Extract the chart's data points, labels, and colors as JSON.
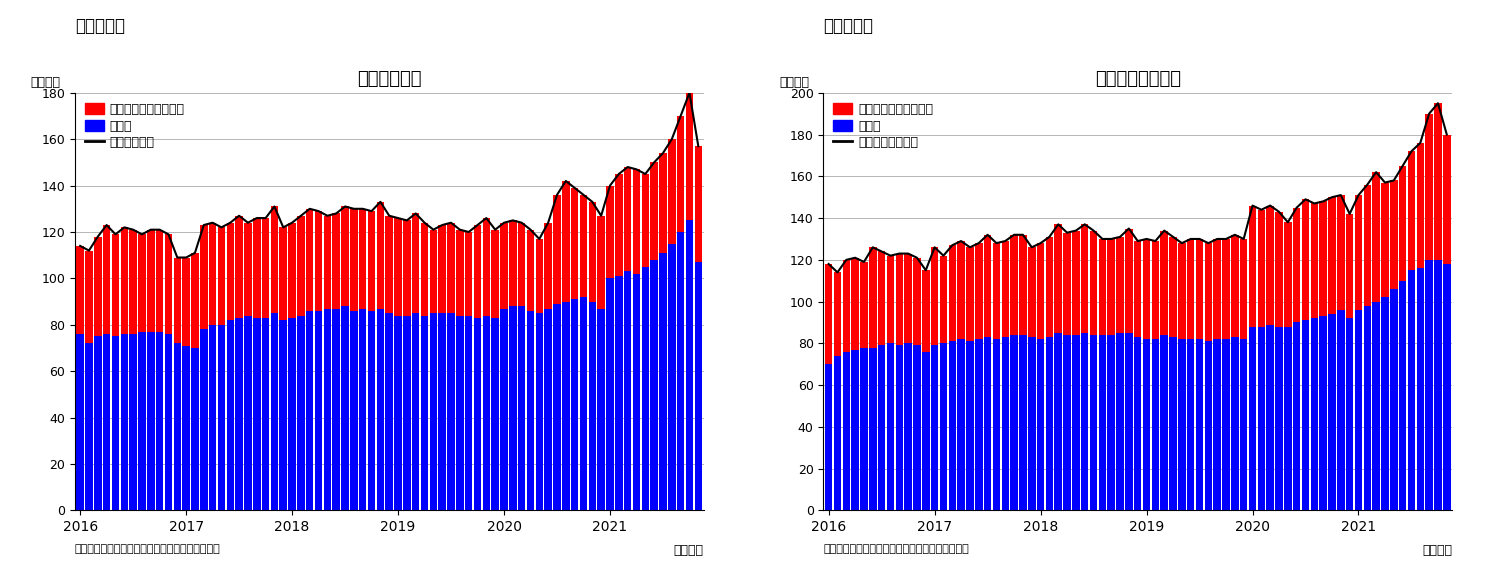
{
  "chart1": {
    "title": "住宅着工件数",
    "super_title": "（図表１）",
    "ylabel": "（万件）",
    "xlabel_note": "（月次）",
    "source": "（資料）センサス局よりニッセイ基礎研究所作成",
    "ylim": [
      0,
      180
    ],
    "yticks": [
      0,
      20,
      40,
      60,
      80,
      100,
      120,
      140,
      160,
      180
    ],
    "legend_labels": [
      "集合住宅（二戸以上）",
      "戸建て",
      "住宅着工件数"
    ],
    "blue_color": "#0000FF",
    "red_color": "#FF0000",
    "line_color": "#000000",
    "kodate": [
      76,
      72,
      75,
      76,
      75,
      76,
      76,
      77,
      77,
      77,
      76,
      72,
      71,
      70,
      78,
      80,
      80,
      82,
      83,
      84,
      83,
      83,
      85,
      82,
      83,
      84,
      86,
      86,
      87,
      87,
      88,
      86,
      87,
      86,
      87,
      85,
      84,
      84,
      85,
      84,
      85,
      85,
      85,
      84,
      84,
      83,
      84,
      83,
      87,
      88,
      88,
      86,
      85,
      87,
      89,
      90,
      91,
      92,
      90,
      87,
      100,
      101,
      103,
      102,
      105,
      108,
      111,
      115,
      120,
      125,
      107
    ],
    "shugo": [
      38,
      40,
      43,
      47,
      44,
      46,
      45,
      42,
      44,
      44,
      43,
      37,
      38,
      41,
      45,
      44,
      42,
      42,
      44,
      40,
      43,
      43,
      46,
      40,
      41,
      43,
      44,
      43,
      40,
      41,
      43,
      44,
      43,
      43,
      46,
      42,
      42,
      41,
      43,
      40,
      36,
      38,
      39,
      37,
      36,
      40,
      42,
      38,
      37,
      37,
      36,
      35,
      32,
      37,
      47,
      52,
      48,
      44,
      43,
      40,
      40,
      44,
      45,
      45,
      40,
      42,
      43,
      45,
      50,
      55,
      50
    ],
    "xtick_years": [
      "2016",
      "2017",
      "2018",
      "2019",
      "2020",
      "2021"
    ],
    "xtick_positions": [
      0,
      12,
      24,
      36,
      48,
      60
    ]
  },
  "chart2": {
    "title": "住宅着工許可件数",
    "super_title": "（図表２）",
    "ylabel": "（万件）",
    "xlabel_note": "（月次）",
    "source": "（資料）センサス局よりニッセイ基礎研究所作成",
    "ylim": [
      0,
      200
    ],
    "yticks": [
      0,
      20,
      40,
      60,
      80,
      100,
      120,
      140,
      160,
      180,
      200
    ],
    "legend_labels": [
      "集合住宅（二戸以上）",
      "戸建て",
      "住宅建築許可件数"
    ],
    "blue_color": "#0000FF",
    "red_color": "#FF0000",
    "line_color": "#000000",
    "kodate": [
      70,
      74,
      76,
      77,
      78,
      78,
      79,
      80,
      79,
      80,
      79,
      76,
      79,
      80,
      81,
      82,
      81,
      82,
      83,
      82,
      83,
      84,
      84,
      83,
      82,
      83,
      85,
      84,
      84,
      85,
      84,
      84,
      84,
      85,
      85,
      83,
      82,
      82,
      84,
      83,
      82,
      82,
      82,
      81,
      82,
      82,
      83,
      82,
      88,
      88,
      89,
      88,
      88,
      90,
      91,
      92,
      93,
      94,
      96,
      92,
      96,
      98,
      100,
      102,
      106,
      110,
      115,
      116,
      120,
      120,
      118
    ],
    "shugo": [
      48,
      40,
      44,
      44,
      41,
      48,
      45,
      42,
      44,
      43,
      42,
      39,
      47,
      42,
      46,
      47,
      45,
      46,
      49,
      46,
      46,
      48,
      48,
      43,
      46,
      48,
      52,
      49,
      50,
      52,
      50,
      46,
      46,
      46,
      50,
      46,
      48,
      47,
      50,
      48,
      46,
      48,
      48,
      47,
      48,
      48,
      49,
      48,
      58,
      56,
      57,
      55,
      50,
      55,
      58,
      55,
      55,
      56,
      55,
      50,
      55,
      58,
      62,
      55,
      52,
      55,
      57,
      60,
      70,
      75,
      62
    ],
    "xtick_years": [
      "2016",
      "2017",
      "2018",
      "2019",
      "2020",
      "2021"
    ],
    "xtick_positions": [
      0,
      12,
      24,
      36,
      48,
      60
    ]
  }
}
